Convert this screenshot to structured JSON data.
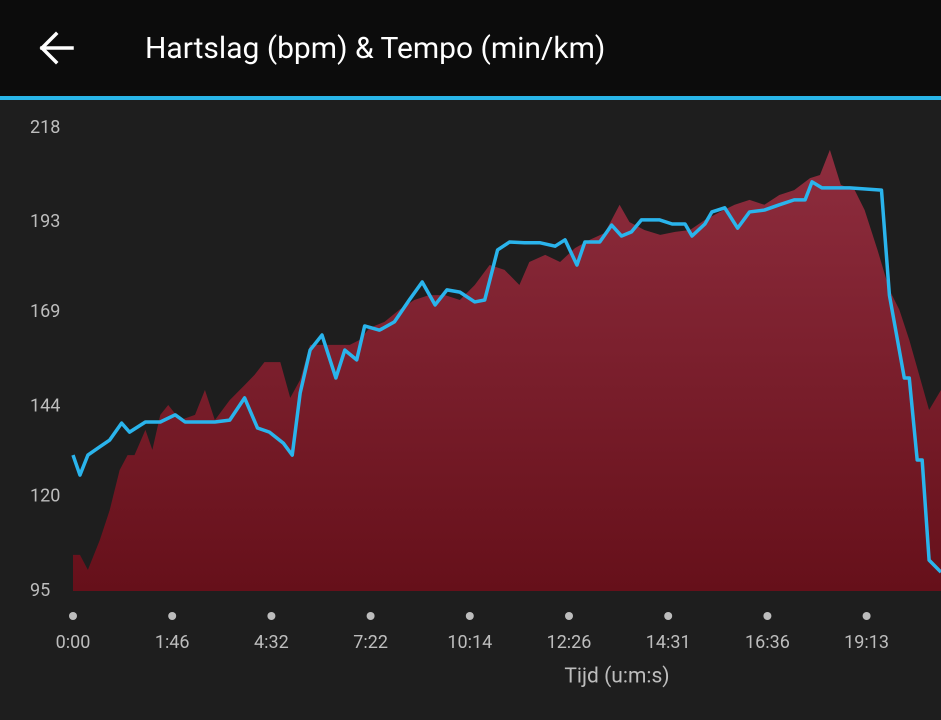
{
  "chart_data": {
    "type": "area-line",
    "title": "Hartslag (bpm) & Tempo (min/km)",
    "xlabel": "Tijd (u:m:s)",
    "xlim": [
      0,
      8.75
    ],
    "ylim": [
      95,
      218
    ],
    "yticks": [
      95,
      120,
      144,
      169,
      193,
      218
    ],
    "xticks": [
      {
        "value": 0,
        "label": "0:00"
      },
      {
        "value": 1,
        "label": "1:46"
      },
      {
        "value": 2,
        "label": "4:32"
      },
      {
        "value": 3,
        "label": "7:22"
      },
      {
        "value": 4,
        "label": "10:14"
      },
      {
        "value": 5,
        "label": "12:26"
      },
      {
        "value": 6,
        "label": "14:31"
      },
      {
        "value": 7,
        "label": "16:36"
      },
      {
        "value": 8,
        "label": "19:13"
      }
    ],
    "series": [
      {
        "kind": "area",
        "color": "#8a2a3a",
        "x": [
          0,
          0.07,
          0.15,
          0.27,
          0.37,
          0.47,
          0.55,
          0.62,
          0.73,
          0.8,
          0.88,
          0.96,
          1.08,
          1.23,
          1.33,
          1.43,
          1.58,
          1.73,
          1.83,
          1.93,
          2.09,
          2.19,
          2.29,
          2.39,
          2.54,
          2.69,
          2.79,
          2.89,
          2.99,
          3.14,
          3.29,
          3.44,
          3.59,
          3.75,
          3.9,
          4.05,
          4.2,
          4.35,
          4.5,
          4.6,
          4.76,
          4.91,
          5.06,
          5.21,
          5.36,
          5.51,
          5.61,
          5.76,
          5.92,
          6.07,
          6.22,
          6.37,
          6.52,
          6.67,
          6.82,
          6.97,
          7.12,
          7.27,
          7.43,
          7.53,
          7.63,
          7.74,
          7.88,
          7.98,
          8.11,
          8.23,
          8.33,
          8.43,
          8.53,
          8.63,
          8.75
        ],
        "values": [
          104.6,
          104.6,
          100.6,
          108.5,
          116.5,
          127.1,
          131.1,
          131.1,
          137.8,
          132.5,
          141.8,
          144.4,
          140.4,
          141.8,
          148.4,
          140.4,
          145.7,
          149.7,
          152.4,
          155.8,
          155.8,
          146.3,
          151.1,
          160.4,
          160.4,
          160.4,
          160.4,
          161.7,
          164.9,
          166.5,
          169.7,
          172.3,
          173.6,
          173.6,
          172.3,
          176.3,
          181.6,
          180.3,
          176.3,
          182.4,
          184.3,
          182.4,
          186.1,
          188.3,
          190.1,
          197.6,
          193.0,
          190.9,
          189.6,
          190.4,
          190.9,
          193.6,
          195.7,
          197.6,
          198.9,
          197.6,
          200.2,
          201.5,
          204.7,
          205.5,
          212.2,
          202.9,
          201.5,
          196.2,
          185.6,
          175.0,
          169.7,
          161.7,
          152.4,
          143.1,
          148.4
        ]
      },
      {
        "kind": "line",
        "color": "#2ab4ec",
        "x": [
          0,
          0.07,
          0.15,
          0.27,
          0.37,
          0.49,
          0.57,
          0.73,
          0.88,
          1.03,
          1.13,
          1.28,
          1.43,
          1.58,
          1.73,
          1.86,
          1.98,
          2.12,
          2.21,
          2.29,
          2.39,
          2.51,
          2.65,
          2.74,
          2.86,
          2.94,
          3.09,
          3.24,
          3.39,
          3.52,
          3.65,
          3.77,
          3.9,
          4.05,
          4.15,
          4.28,
          4.4,
          4.55,
          4.71,
          4.86,
          4.96,
          5.08,
          5.16,
          5.31,
          5.43,
          5.53,
          5.63,
          5.73,
          5.91,
          6.04,
          6.17,
          6.24,
          6.37,
          6.44,
          6.57,
          6.7,
          6.82,
          6.97,
          7.12,
          7.27,
          7.38,
          7.45,
          7.55,
          7.83,
          8.15,
          8.23,
          8.38,
          8.43,
          8.51,
          8.56,
          8.63,
          8.75
        ],
        "values": [
          131.1,
          125.8,
          131.1,
          133.3,
          135.1,
          139.6,
          137.2,
          139.9,
          139.9,
          141.8,
          139.9,
          139.9,
          139.9,
          140.4,
          146.3,
          138.3,
          137.2,
          134.3,
          131.1,
          147.6,
          159.0,
          163.0,
          151.6,
          159.0,
          156.4,
          165.4,
          164.3,
          166.5,
          172.3,
          177.1,
          171.0,
          175.0,
          174.4,
          171.8,
          172.3,
          185.6,
          187.7,
          187.5,
          187.5,
          186.6,
          188.3,
          181.6,
          187.7,
          187.7,
          192.2,
          189.3,
          190.4,
          193.6,
          193.6,
          192.5,
          192.5,
          189.3,
          192.5,
          195.7,
          196.8,
          191.4,
          195.7,
          196.2,
          197.6,
          198.9,
          198.9,
          203.7,
          202.1,
          202.1,
          201.5,
          173.6,
          151.6,
          151.6,
          129.8,
          129.8,
          103.2,
          100.0
        ]
      }
    ]
  }
}
